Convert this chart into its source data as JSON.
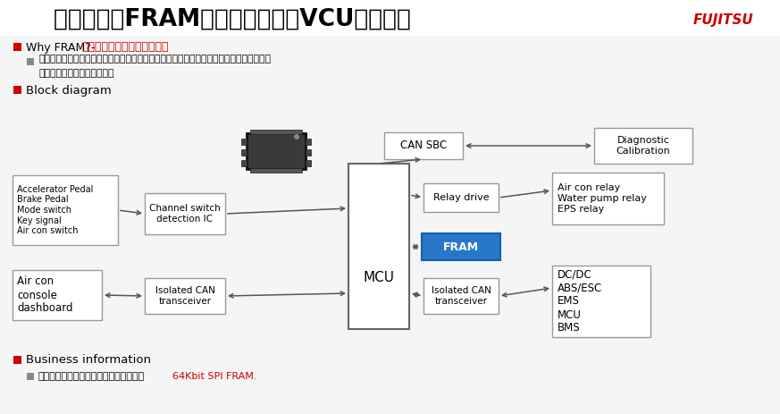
{
  "title_part1": "应用举例：FRAM在整车控制单元VCU中的应用 ",
  "title_fujitsu": "FUJITSU",
  "bg_color": "#f2f2f2",
  "white_bg": "#ffffff",
  "red_color": "#cc0000",
  "blue_fram": "#2878c8",
  "bullet_red": "#cc0000",
  "bullet_gray": "#888888",
  "why_fram_black": "Why FRAM?-",
  "why_fram_red": "高烧写耐久性，告诉写入操作",
  "sub_bullet": "系统需要以每秒一次的频率去记录汽车行驶的当前状态和发生故障时的变速器挡位，加速状\n况，刹车和输出扭矩等信息。",
  "block_diagram": "Block diagram",
  "business_info": "Business information",
  "business_sub_black": "中国的新能源汽车和低速代步车开始使用",
  "business_sub_red": "64Kbit SPI FRAM.",
  "box_inputs": "Accelerator Pedal\nBrake Pedal\nMode switch\nKey signal\nAir con switch",
  "box_channel": "Channel switch\ndetection IC",
  "box_mcu": "MCU",
  "box_fram": "FRAM",
  "box_can_sbc": "CAN SBC",
  "box_relay": "Relay drive",
  "box_relay_items": "Air con relay\nWater pump relay\nEPS relay",
  "box_diag": "Diagnostic\nCalibration",
  "box_iso_can_left": "Isolated CAN\ntransceiver",
  "box_iso_can_right": "Isolated CAN\ntransceiver",
  "box_air_con": "Air con\nconsole\ndashboard",
  "box_dc": "DC/DC\nABS/ESC\nEMS\nMCU\nBMS",
  "arr_color": "#555555",
  "edge_color": "#999999",
  "title_fontsize": 19,
  "fujitsu_fontsize": 11
}
